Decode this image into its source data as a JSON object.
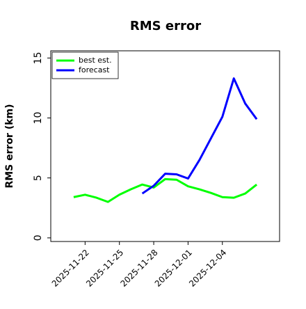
{
  "chart_data": {
    "type": "line",
    "title": "RMS error",
    "ylabel": "RMS error (km)",
    "x": [
      "2025-11-21",
      "2025-11-22",
      "2025-11-23",
      "2025-11-24",
      "2025-11-25",
      "2025-11-26",
      "2025-11-27",
      "2025-11-28",
      "2025-11-29",
      "2025-11-30",
      "2025-12-01",
      "2025-12-02",
      "2025-12-03",
      "2025-12-04",
      "2025-12-05",
      "2025-12-06",
      "2025-12-07"
    ],
    "series": [
      {
        "name": "best est.",
        "color": "#00ff00",
        "values": [
          3.4,
          3.6,
          3.35,
          3.0,
          3.6,
          4.05,
          4.45,
          4.2,
          4.9,
          4.85,
          4.3,
          4.05,
          3.75,
          3.4,
          3.35,
          3.7,
          4.45
        ]
      },
      {
        "name": "forecast",
        "color": "#0000ff",
        "values": [
          null,
          null,
          null,
          null,
          null,
          null,
          3.7,
          4.35,
          5.35,
          5.3,
          4.95,
          6.5,
          8.3,
          10.1,
          13.3,
          11.2,
          9.9
        ]
      }
    ],
    "xlim": [
      "2025-11-19",
      "2025-12-09"
    ],
    "xticks": [
      "2025-11-22",
      "2025-11-25",
      "2025-11-28",
      "2025-12-01",
      "2025-12-04"
    ],
    "ylim": [
      -0.3,
      15.6
    ],
    "yticks": [
      0,
      5,
      10,
      15
    ],
    "legend": "upper left",
    "grid": false
  }
}
